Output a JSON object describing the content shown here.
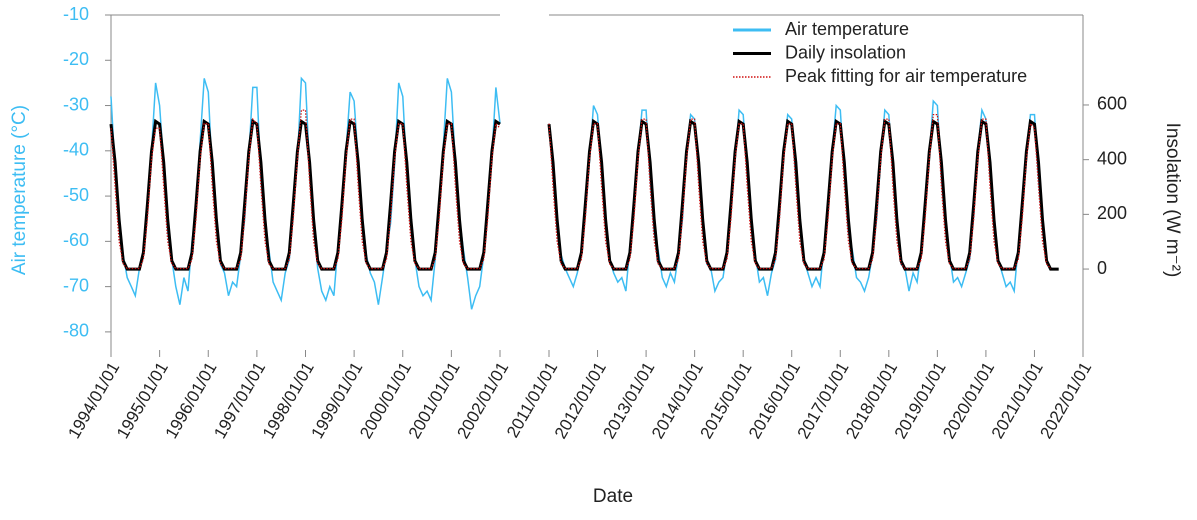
{
  "chart_data": [
    {
      "type": "line",
      "ylabel": "Air temperature (°C)",
      "ylim": [
        -84,
        -10
      ],
      "yticks": [
        -10,
        -20,
        -30,
        -40,
        -50,
        -60,
        -70,
        -80
      ],
      "y2lim": [
        -296,
        929
      ],
      "xlim": [
        "1994/01/01",
        "2002/01/01"
      ],
      "xticks": [
        "1994/01/01",
        "1995/01/01",
        "1996/01/01",
        "1997/01/01",
        "1998/01/01",
        "1999/01/01",
        "2000/01/01",
        "2001/01/01",
        "2002/01/01"
      ],
      "x": [
        "1994/01/01",
        "1994/02/01",
        "1994/03/01",
        "1994/04/01",
        "1994/05/01",
        "1994/06/01",
        "1994/07/01",
        "1994/08/01",
        "1994/09/01",
        "1994/10/01",
        "1994/11/01",
        "1994/12/01",
        "1995/01/01",
        "1995/02/01",
        "1995/03/01",
        "1995/04/01",
        "1995/05/01",
        "1995/06/01",
        "1995/07/01",
        "1995/08/01",
        "1995/09/01",
        "1995/10/01",
        "1995/11/01",
        "1995/12/01",
        "1996/01/01",
        "1996/02/01",
        "1996/03/01",
        "1996/04/01",
        "1996/05/01",
        "1996/06/01",
        "1996/07/01",
        "1996/08/01",
        "1996/09/01",
        "1996/10/01",
        "1996/11/01",
        "1996/12/01",
        "1997/01/01",
        "1997/02/01",
        "1997/03/01",
        "1997/04/01",
        "1997/05/01",
        "1997/06/01",
        "1997/07/01",
        "1997/08/01",
        "1997/09/01",
        "1997/10/01",
        "1997/11/01",
        "1997/12/01",
        "1998/01/01",
        "1998/02/01",
        "1998/03/01",
        "1998/04/01",
        "1998/05/01",
        "1998/06/01",
        "1998/07/01",
        "1998/08/01",
        "1998/09/01",
        "1998/10/01",
        "1998/11/01",
        "1998/12/01",
        "1999/01/01",
        "1999/02/01",
        "1999/03/01",
        "1999/04/01",
        "1999/05/01",
        "1999/06/01",
        "1999/07/01",
        "1999/08/01",
        "1999/09/01",
        "1999/10/01",
        "1999/11/01",
        "1999/12/01",
        "2000/01/01",
        "2000/02/01",
        "2000/03/01",
        "2000/04/01",
        "2000/05/01",
        "2000/06/01",
        "2000/07/01",
        "2000/08/01",
        "2000/09/01",
        "2000/10/01",
        "2000/11/01",
        "2000/12/01",
        "2001/01/01",
        "2001/02/01",
        "2001/03/01",
        "2001/04/01",
        "2001/05/01",
        "2001/06/01",
        "2001/07/01",
        "2001/08/01",
        "2001/09/01",
        "2001/10/01",
        "2001/11/01",
        "2001/12/01",
        "2002/01/01"
      ],
      "series": [
        {
          "name": "Air temperature",
          "color": "#3dbdf3",
          "values": [
            -28,
            -44,
            -56,
            -63,
            -68,
            -70,
            -72,
            -66,
            -62,
            -52,
            -40,
            -25,
            -30,
            -43,
            -58,
            -64,
            -70,
            -74,
            -68,
            -71,
            -60,
            -53,
            -38,
            -24,
            -27,
            -45,
            -55,
            -65,
            -67,
            -72,
            -69,
            -70,
            -63,
            -55,
            -41,
            -26,
            -26,
            -46,
            -57,
            -62,
            -69,
            -71,
            -73,
            -67,
            -64,
            -54,
            -42,
            -24,
            -25,
            -44,
            -56,
            -66,
            -71,
            -73,
            -70,
            -72,
            -61,
            -51,
            -40,
            -27,
            -29,
            -42,
            -54,
            -63,
            -67,
            -69,
            -74,
            -68,
            -62,
            -56,
            -43,
            -25,
            -28,
            -45,
            -57,
            -64,
            -70,
            -72,
            -71,
            -73,
            -64,
            -53,
            -39,
            -24,
            -27,
            -43,
            -55,
            -62,
            -68,
            -75,
            -72,
            -70,
            -63,
            -52,
            -41,
            -26,
            -34
          ]
        },
        {
          "name": "Daily insolation",
          "color": "#000000",
          "axis": "y2",
          "values": [
            530,
            390,
            180,
            30,
            0,
            0,
            0,
            0,
            60,
            240,
            430,
            540,
            530,
            390,
            180,
            30,
            0,
            0,
            0,
            0,
            60,
            240,
            430,
            540,
            530,
            390,
            180,
            30,
            0,
            0,
            0,
            0,
            60,
            240,
            430,
            540,
            530,
            390,
            180,
            30,
            0,
            0,
            0,
            0,
            60,
            240,
            430,
            540,
            530,
            390,
            180,
            30,
            0,
            0,
            0,
            0,
            60,
            240,
            430,
            540,
            530,
            390,
            180,
            30,
            0,
            0,
            0,
            0,
            60,
            240,
            430,
            540,
            530,
            390,
            180,
            30,
            0,
            0,
            0,
            0,
            60,
            240,
            430,
            540,
            530,
            390,
            180,
            30,
            0,
            0,
            0,
            0,
            60,
            240,
            430,
            540,
            530
          ]
        },
        {
          "name": "Peak fitting for air temperature",
          "color": "#d01010",
          "values": [
            -35,
            -48,
            -60,
            -65,
            -66,
            -66,
            -66,
            -66,
            -64,
            -55,
            -42,
            -35,
            -35,
            -48,
            -60,
            -65,
            -66,
            -66,
            -66,
            -66,
            -64,
            -55,
            -42,
            -34,
            -34,
            -48,
            -60,
            -65,
            -66,
            -66,
            -66,
            -66,
            -64,
            -55,
            -42,
            -33,
            -34,
            -48,
            -60,
            -65,
            -66,
            -66,
            -66,
            -66,
            -64,
            -55,
            -42,
            -31,
            -31,
            -47,
            -60,
            -65,
            -66,
            -66,
            -66,
            -66,
            -64,
            -55,
            -42,
            -33,
            -33,
            -48,
            -60,
            -65,
            -66,
            -66,
            -66,
            -66,
            -64,
            -55,
            -42,
            -34,
            -34,
            -48,
            -60,
            -65,
            -66,
            -66,
            -66,
            -66,
            -64,
            -55,
            -42,
            -34,
            -34,
            -48,
            -60,
            -65,
            -66,
            -66,
            -66,
            -66,
            -64,
            -55,
            -42,
            -34,
            -35
          ]
        }
      ]
    },
    {
      "type": "line",
      "xlabel": "Date",
      "y2label": "Insolation (W m⁻²)",
      "ylim": [
        -84,
        -10
      ],
      "y2lim": [
        -296,
        929
      ],
      "y2ticks": [
        0,
        200,
        400,
        600
      ],
      "legend": "top-right",
      "xlim": [
        "2011/01/01",
        "2022/01/01"
      ],
      "xticks": [
        "2011/01/01",
        "2012/01/01",
        "2013/01/01",
        "2014/01/01",
        "2015/01/01",
        "2016/01/01",
        "2017/01/01",
        "2018/01/01",
        "2019/01/01",
        "2020/01/01",
        "2021/01/01",
        "2022/01/01"
      ],
      "x": [
        "2011/01/01",
        "2011/02/01",
        "2011/03/01",
        "2011/04/01",
        "2011/05/01",
        "2011/06/01",
        "2011/07/01",
        "2011/08/01",
        "2011/09/01",
        "2011/10/01",
        "2011/11/01",
        "2011/12/01",
        "2012/01/01",
        "2012/02/01",
        "2012/03/01",
        "2012/04/01",
        "2012/05/01",
        "2012/06/01",
        "2012/07/01",
        "2012/08/01",
        "2012/09/01",
        "2012/10/01",
        "2012/11/01",
        "2012/12/01",
        "2013/01/01",
        "2013/02/01",
        "2013/03/01",
        "2013/04/01",
        "2013/05/01",
        "2013/06/01",
        "2013/07/01",
        "2013/08/01",
        "2013/09/01",
        "2013/10/01",
        "2013/11/01",
        "2013/12/01",
        "2014/01/01",
        "2014/02/01",
        "2014/03/01",
        "2014/04/01",
        "2014/05/01",
        "2014/06/01",
        "2014/07/01",
        "2014/08/01",
        "2014/09/01",
        "2014/10/01",
        "2014/11/01",
        "2014/12/01",
        "2015/01/01",
        "2015/02/01",
        "2015/03/01",
        "2015/04/01",
        "2015/05/01",
        "2015/06/01",
        "2015/07/01",
        "2015/08/01",
        "2015/09/01",
        "2015/10/01",
        "2015/11/01",
        "2015/12/01",
        "2016/01/01",
        "2016/02/01",
        "2016/03/01",
        "2016/04/01",
        "2016/05/01",
        "2016/06/01",
        "2016/07/01",
        "2016/08/01",
        "2016/09/01",
        "2016/10/01",
        "2016/11/01",
        "2016/12/01",
        "2017/01/01",
        "2017/02/01",
        "2017/03/01",
        "2017/04/01",
        "2017/05/01",
        "2017/06/01",
        "2017/07/01",
        "2017/08/01",
        "2017/09/01",
        "2017/10/01",
        "2017/11/01",
        "2017/12/01",
        "2018/01/01",
        "2018/02/01",
        "2018/03/01",
        "2018/04/01",
        "2018/05/01",
        "2018/06/01",
        "2018/07/01",
        "2018/08/01",
        "2018/09/01",
        "2018/10/01",
        "2018/11/01",
        "2018/12/01",
        "2019/01/01",
        "2019/02/01",
        "2019/03/01",
        "2019/04/01",
        "2019/05/01",
        "2019/06/01",
        "2019/07/01",
        "2019/08/01",
        "2019/09/01",
        "2019/10/01",
        "2019/11/01",
        "2019/12/01",
        "2020/01/01",
        "2020/02/01",
        "2020/03/01",
        "2020/04/01",
        "2020/05/01",
        "2020/06/01",
        "2020/07/01",
        "2020/08/01",
        "2020/09/01",
        "2020/10/01",
        "2020/11/01",
        "2020/12/01",
        "2021/01/01",
        "2021/02/01",
        "2021/03/01",
        "2021/04/01",
        "2021/05/01",
        "2021/06/01",
        "2021/07/01"
      ],
      "series": [
        {
          "name": "Air temperature",
          "color": "#3dbdf3",
          "values": [
            -34,
            -45,
            -57,
            -63,
            -66,
            -68,
            -70,
            -67,
            -62,
            -54,
            -42,
            -30,
            -32,
            -44,
            -56,
            -64,
            -67,
            -69,
            -68,
            -71,
            -61,
            -53,
            -41,
            -31,
            -31,
            -46,
            -58,
            -62,
            -68,
            -70,
            -67,
            -69,
            -63,
            -55,
            -40,
            -32,
            -33,
            -45,
            -55,
            -65,
            -66,
            -71,
            -69,
            -68,
            -62,
            -52,
            -42,
            -31,
            -32,
            -44,
            -57,
            -63,
            -69,
            -68,
            -72,
            -67,
            -64,
            -54,
            -41,
            -32,
            -33,
            -46,
            -56,
            -64,
            -67,
            -70,
            -68,
            -70,
            -61,
            -53,
            -40,
            -30,
            -31,
            -45,
            -58,
            -62,
            -68,
            -69,
            -71,
            -68,
            -63,
            -55,
            -42,
            -31,
            -32,
            -44,
            -55,
            -65,
            -66,
            -71,
            -67,
            -69,
            -62,
            -52,
            -41,
            -29,
            -30,
            -46,
            -57,
            -63,
            -69,
            -68,
            -70,
            -67,
            -64,
            -54,
            -40,
            -31,
            -33,
            -45,
            -56,
            -64,
            -67,
            -70,
            -69,
            -71,
            -61,
            -53,
            -42,
            -32,
            -32,
            -46,
            -57,
            -64,
            null,
            null,
            null
          ]
        },
        {
          "name": "Daily insolation",
          "color": "#000000",
          "axis": "y2",
          "values": [
            530,
            390,
            180,
            30,
            0,
            0,
            0,
            0,
            60,
            240,
            430,
            540,
            530,
            390,
            180,
            30,
            0,
            0,
            0,
            0,
            60,
            240,
            430,
            540,
            530,
            390,
            180,
            30,
            0,
            0,
            0,
            0,
            60,
            240,
            430,
            540,
            530,
            390,
            180,
            30,
            0,
            0,
            0,
            0,
            60,
            240,
            430,
            540,
            530,
            390,
            180,
            30,
            0,
            0,
            0,
            0,
            60,
            240,
            430,
            540,
            530,
            390,
            180,
            30,
            0,
            0,
            0,
            0,
            60,
            240,
            430,
            540,
            530,
            390,
            180,
            30,
            0,
            0,
            0,
            0,
            60,
            240,
            430,
            540,
            530,
            390,
            180,
            30,
            0,
            0,
            0,
            0,
            60,
            240,
            430,
            540,
            530,
            390,
            180,
            30,
            0,
            0,
            0,
            0,
            60,
            240,
            430,
            540,
            530,
            390,
            180,
            30,
            0,
            0,
            0,
            0,
            60,
            240,
            430,
            540,
            530,
            390,
            180,
            30,
            0,
            0,
            0
          ]
        },
        {
          "name": "Peak fitting for air temperature",
          "color": "#d01010",
          "values": [
            -34,
            -48,
            -60,
            -65,
            -66,
            -66,
            -66,
            -66,
            -64,
            -55,
            -42,
            -34,
            -34,
            -48,
            -60,
            -65,
            -66,
            -66,
            -66,
            -66,
            -64,
            -55,
            -42,
            -33,
            -33,
            -48,
            -60,
            -65,
            -66,
            -66,
            -66,
            -66,
            -64,
            -55,
            -42,
            -33,
            -33,
            -48,
            -60,
            -65,
            -66,
            -66,
            -66,
            -66,
            -64,
            -55,
            -42,
            -34,
            -34,
            -48,
            -60,
            -65,
            -66,
            -66,
            -66,
            -66,
            -64,
            -55,
            -42,
            -34,
            -34,
            -48,
            -60,
            -65,
            -66,
            -66,
            -66,
            -66,
            -64,
            -55,
            -42,
            -34,
            -34,
            -48,
            -60,
            -65,
            -66,
            -66,
            -66,
            -66,
            -64,
            -55,
            -42,
            -33,
            -33,
            -48,
            -60,
            -65,
            -66,
            -66,
            -66,
            -66,
            -64,
            -55,
            -42,
            -32,
            -32,
            -48,
            -60,
            -65,
            -66,
            -66,
            -66,
            -66,
            -64,
            -55,
            -42,
            -33,
            -33,
            -48,
            -60,
            -65,
            -66,
            -66,
            -66,
            -66,
            -64,
            -55,
            -42,
            -34,
            -35,
            -48,
            -60,
            -65,
            -66,
            null,
            null
          ]
        }
      ]
    }
  ]
}
